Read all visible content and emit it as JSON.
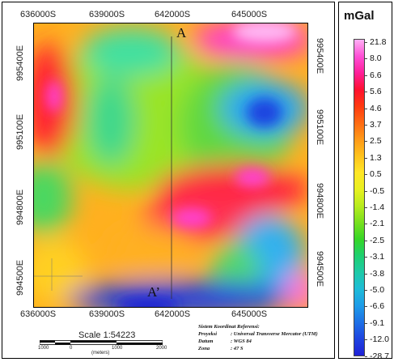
{
  "map": {
    "x_ticks_top": [
      "636000S",
      "639000S",
      "642000S",
      "645000S"
    ],
    "x_ticks_bottom": [
      "636000S",
      "639000S",
      "642000S",
      "645000S"
    ],
    "y_ticks_left": [
      "995400E",
      "995100E",
      "994800E",
      "994500E"
    ],
    "y_ticks_right": [
      "995400E",
      "995100E",
      "994800E",
      "994500E"
    ],
    "section_start": "A",
    "section_end": "A’"
  },
  "scale": {
    "title": "Scale 1:54223",
    "numbers": [
      "1000",
      "0",
      "1000",
      "2000"
    ],
    "unit": "(meters)"
  },
  "reference": {
    "heading": "Sistem Koordinat Referensi:",
    "rows": [
      {
        "key": "Proyeksi",
        "value": ": Universal Transverse Mercator (UTM)"
      },
      {
        "key": "Datum",
        "value": ": WGS 84"
      },
      {
        "key": "Zona",
        "value": ": 47 S"
      }
    ]
  },
  "legend": {
    "title": "mGal",
    "labels": [
      "21.8",
      "8.0",
      "6.6",
      "5.6",
      "4.6",
      "3.7",
      "2.5",
      "1.3",
      "0.5",
      "-0.5",
      "-1.4",
      "-2.1",
      "-2.5",
      "-3.1",
      "-3.8",
      "-5.0",
      "-6.6",
      "-9.1",
      "-12.0",
      "-28.7"
    ],
    "colors": [
      "#ffb0f4",
      "#ff4fd6",
      "#ff1f9a",
      "#ff1030",
      "#ff3a10",
      "#ff6a12",
      "#ff9a18",
      "#ffc21c",
      "#ffe626",
      "#e8f020",
      "#b8ec1e",
      "#78e01e",
      "#36d626",
      "#1ed070",
      "#1ecaa8",
      "#1ebcd8",
      "#1e9ce8",
      "#1e70e6",
      "#1e44e0",
      "#1e20d6"
    ]
  }
}
